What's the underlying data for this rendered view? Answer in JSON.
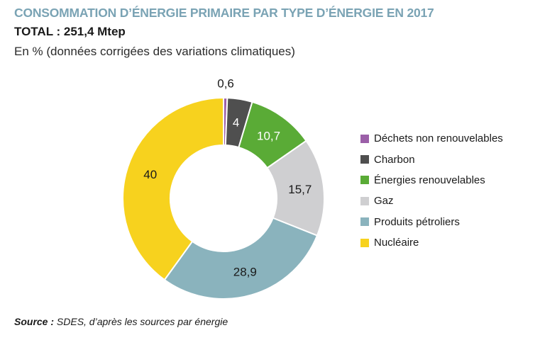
{
  "title": "CONSOMMATION D’ÉNERGIE PRIMAIRE PAR TYPE D’ÉNERGIE EN 2017",
  "total": "TOTAL : 251,4 Mtep",
  "subtitle": "En % (données corrigées des variations climatiques)",
  "source": {
    "label": "Source :",
    "text": " SDES, d’après les sources par énergie"
  },
  "chart_data": {
    "type": "pie",
    "donut": true,
    "title": "CONSOMMATION D’ÉNERGIE PRIMAIRE PAR TYPE D’ÉNERGIE EN 2017",
    "unit": "%",
    "legend_position": "right",
    "slices": [
      {
        "name": "Déchets non renouvelables",
        "value": 0.6,
        "label": "0,6",
        "color": "#9b5fa8"
      },
      {
        "name": "Charbon",
        "value": 4,
        "label": "4",
        "color": "#4f4f4f"
      },
      {
        "name": "Énergies renouvelables",
        "value": 10.7,
        "label": "10,7",
        "color": "#5aab36"
      },
      {
        "name": "Gaz",
        "value": 15.7,
        "label": "15,7",
        "color": "#cfcfd1"
      },
      {
        "name": "Produits pétroliers",
        "value": 28.9,
        "label": "28,9",
        "color": "#8ab3bd"
      },
      {
        "name": "Nucléaire",
        "value": 40,
        "label": "40",
        "color": "#f7d21e"
      }
    ]
  }
}
